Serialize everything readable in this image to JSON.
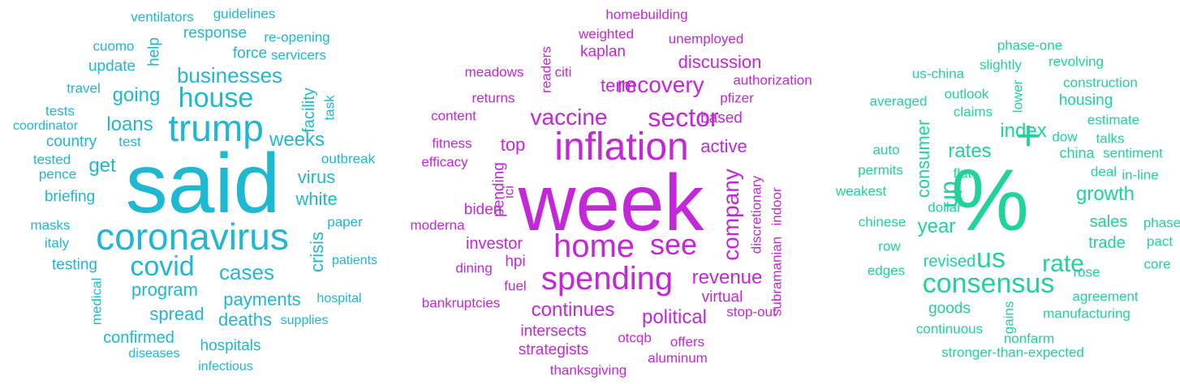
{
  "clouds": [
    {
      "color": "#1fb8d3",
      "words": [
        {
          "text": "said"
        },
        {
          "text": "coronavirus"
        },
        {
          "text": "trump"
        },
        {
          "text": "house"
        },
        {
          "text": "covid"
        },
        {
          "text": "businesses"
        },
        {
          "text": "cases"
        },
        {
          "text": "going"
        },
        {
          "text": "loans"
        },
        {
          "text": "weeks"
        },
        {
          "text": "get"
        },
        {
          "text": "virus"
        },
        {
          "text": "white"
        },
        {
          "text": "crisis"
        },
        {
          "text": "program"
        },
        {
          "text": "payments"
        },
        {
          "text": "deaths"
        },
        {
          "text": "spread"
        },
        {
          "text": "confirmed"
        },
        {
          "text": "hospitals"
        },
        {
          "text": "country"
        },
        {
          "text": "briefing"
        },
        {
          "text": "testing"
        },
        {
          "text": "force"
        },
        {
          "text": "update"
        },
        {
          "text": "help"
        },
        {
          "text": "response"
        },
        {
          "text": "guidelines"
        },
        {
          "text": "ventilators"
        },
        {
          "text": "cuomo"
        },
        {
          "text": "re-opening"
        },
        {
          "text": "servicers"
        },
        {
          "text": "travel"
        },
        {
          "text": "tests"
        },
        {
          "text": "coordinator"
        },
        {
          "text": "facility"
        },
        {
          "text": "task"
        },
        {
          "text": "test"
        },
        {
          "text": "tested"
        },
        {
          "text": "pence"
        },
        {
          "text": "outbreak"
        },
        {
          "text": "masks"
        },
        {
          "text": "italy"
        },
        {
          "text": "paper"
        },
        {
          "text": "patients"
        },
        {
          "text": "medical"
        },
        {
          "text": "hospital"
        },
        {
          "text": "supplies"
        },
        {
          "text": "diseases"
        },
        {
          "text": "infectious"
        }
      ]
    },
    {
      "color": "#c427d9",
      "words": [
        {
          "text": "week"
        },
        {
          "text": "inflation"
        },
        {
          "text": "home"
        },
        {
          "text": "spending"
        },
        {
          "text": "see"
        },
        {
          "text": "sector"
        },
        {
          "text": "recovery"
        },
        {
          "text": "vaccine"
        },
        {
          "text": "company"
        },
        {
          "text": "continues"
        },
        {
          "text": "political"
        },
        {
          "text": "revenue"
        },
        {
          "text": "active"
        },
        {
          "text": "discussion"
        },
        {
          "text": "term"
        },
        {
          "text": "top"
        },
        {
          "text": "investor"
        },
        {
          "text": "based"
        },
        {
          "text": "virtual"
        },
        {
          "text": "intersects"
        },
        {
          "text": "strategists"
        },
        {
          "text": "otcqb"
        },
        {
          "text": "pending"
        },
        {
          "text": "biden"
        },
        {
          "text": "hpi"
        },
        {
          "text": "kaplan"
        },
        {
          "text": "weighted"
        },
        {
          "text": "homebuilding"
        },
        {
          "text": "unemployed"
        },
        {
          "text": "meadows"
        },
        {
          "text": "citi"
        },
        {
          "text": "readers"
        },
        {
          "text": "authorization"
        },
        {
          "text": "pfizer"
        },
        {
          "text": "returns"
        },
        {
          "text": "content"
        },
        {
          "text": "fitness"
        },
        {
          "text": "efficacy"
        },
        {
          "text": "ici"
        },
        {
          "text": "moderna"
        },
        {
          "text": "dining"
        },
        {
          "text": "fuel"
        },
        {
          "text": "bankruptcies"
        },
        {
          "text": "discretionary"
        },
        {
          "text": "indoor"
        },
        {
          "text": "subramanian"
        },
        {
          "text": "stop-out"
        },
        {
          "text": "offers"
        },
        {
          "text": "aluminum"
        },
        {
          "text": "thanksgiving"
        }
      ]
    },
    {
      "color": "#1fd39a",
      "words": [
        {
          "text": "%"
        },
        {
          "text": "+"
        },
        {
          "text": "consensus"
        },
        {
          "text": "us"
        },
        {
          "text": "rate"
        },
        {
          "text": "index"
        },
        {
          "text": "rates"
        },
        {
          "text": "up"
        },
        {
          "text": "year"
        },
        {
          "text": "growth"
        },
        {
          "text": "sales"
        },
        {
          "text": "trade"
        },
        {
          "text": "revised"
        },
        {
          "text": "consumer"
        },
        {
          "text": "china"
        },
        {
          "text": "deal"
        },
        {
          "text": "housing"
        },
        {
          "text": "outlook"
        },
        {
          "text": "claims"
        },
        {
          "text": "lower"
        },
        {
          "text": "estimate"
        },
        {
          "text": "dow"
        },
        {
          "text": "talks"
        },
        {
          "text": "sentiment"
        },
        {
          "text": "in-line"
        },
        {
          "text": "phase"
        },
        {
          "text": "pact"
        },
        {
          "text": "core"
        },
        {
          "text": "rose"
        },
        {
          "text": "agreement"
        },
        {
          "text": "manufacturing"
        },
        {
          "text": "goods"
        },
        {
          "text": "gains"
        },
        {
          "text": "continuous"
        },
        {
          "text": "nonfarm"
        },
        {
          "text": "stronger-than-expected"
        },
        {
          "text": "phase-one"
        },
        {
          "text": "revolving"
        },
        {
          "text": "slightly"
        },
        {
          "text": "us-china"
        },
        {
          "text": "construction"
        },
        {
          "text": "averaged"
        },
        {
          "text": "auto"
        },
        {
          "text": "permits"
        },
        {
          "text": "flat"
        },
        {
          "text": "weakest"
        },
        {
          "text": "dollar"
        },
        {
          "text": "chinese"
        },
        {
          "text": "row"
        },
        {
          "text": "edges"
        }
      ]
    }
  ]
}
